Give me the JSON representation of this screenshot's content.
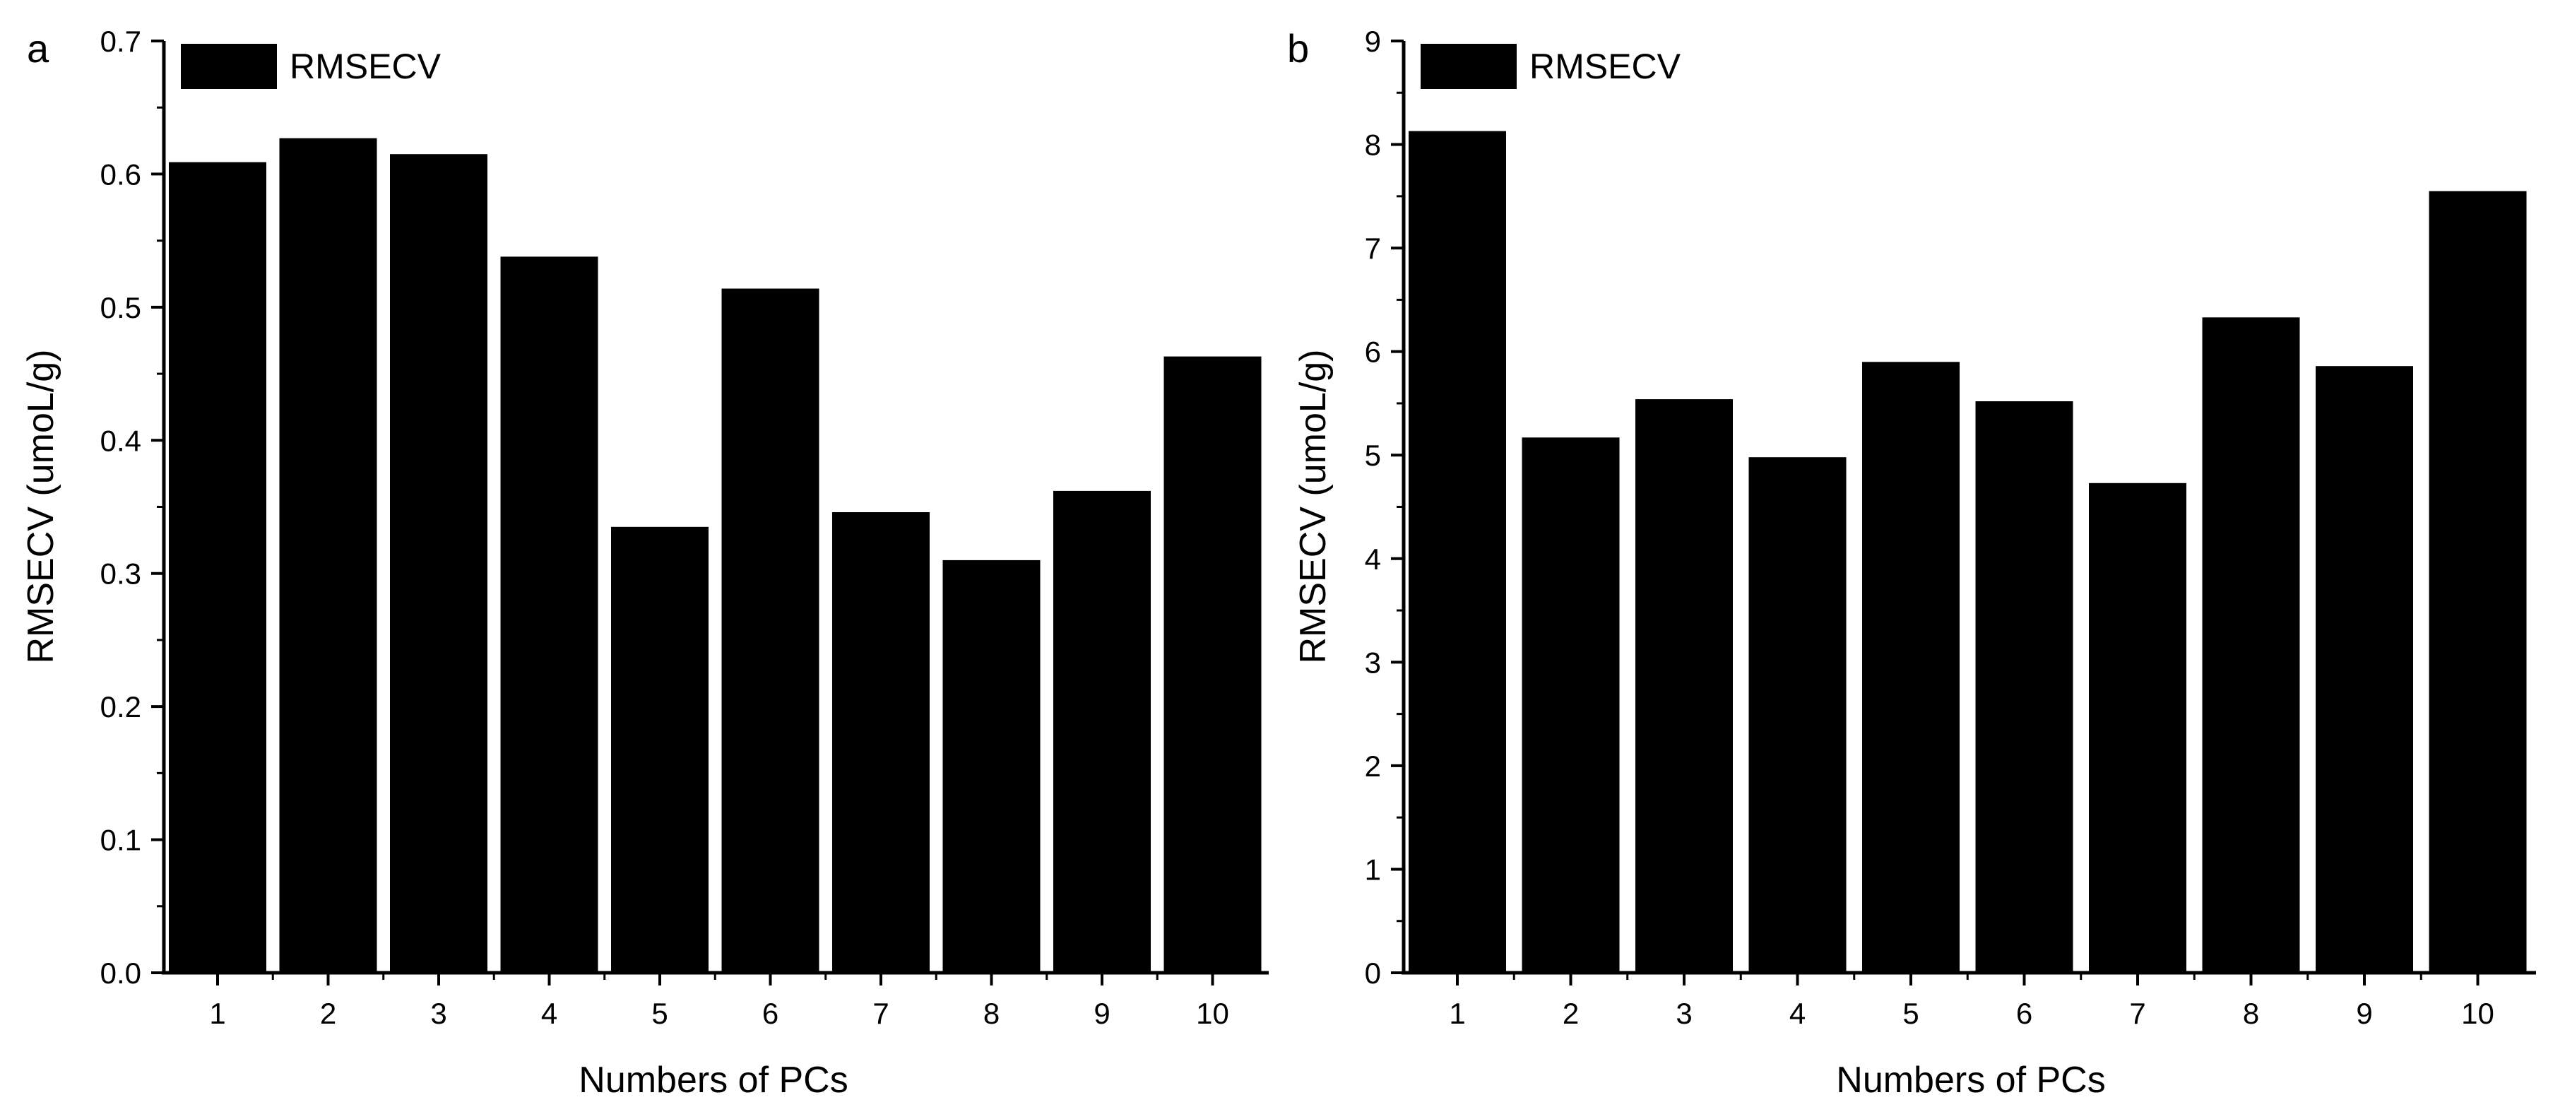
{
  "colors": {
    "bar": "#000000",
    "axis": "#000000",
    "background": "#ffffff"
  },
  "chart_data": [
    {
      "type": "bar",
      "panel_label": "a",
      "categories": [
        "1",
        "2",
        "3",
        "4",
        "5",
        "6",
        "7",
        "8",
        "9",
        "10"
      ],
      "series": [
        {
          "name": "RMSECV",
          "values": [
            0.609,
            0.627,
            0.615,
            0.538,
            0.335,
            0.514,
            0.346,
            0.31,
            0.362,
            0.463
          ]
        }
      ],
      "xlabel": "Numbers of PCs",
      "ylabel": "RMSECV (umoL/g)",
      "ylim": [
        0,
        0.7
      ],
      "yticks": [
        "0.0",
        "0.1",
        "0.2",
        "0.3",
        "0.4",
        "0.5",
        "0.6",
        "0.7"
      ],
      "legend": {
        "label": "RMSECV",
        "placement": "top-left"
      },
      "grid": false
    },
    {
      "type": "bar",
      "panel_label": "b",
      "categories": [
        "1",
        "2",
        "3",
        "4",
        "5",
        "6",
        "7",
        "8",
        "9",
        "10"
      ],
      "series": [
        {
          "name": "RMSECV",
          "values": [
            8.13,
            5.17,
            5.54,
            4.98,
            5.9,
            5.52,
            4.73,
            6.33,
            5.86,
            7.55
          ]
        }
      ],
      "xlabel": "Numbers of PCs",
      "ylabel": "RMSECV (umoL/g)",
      "ylim": [
        0,
        9
      ],
      "yticks": [
        "0",
        "1",
        "2",
        "3",
        "4",
        "5",
        "6",
        "7",
        "8",
        "9"
      ],
      "legend": {
        "label": "RMSECV",
        "placement": "top-left"
      },
      "grid": false
    }
  ]
}
